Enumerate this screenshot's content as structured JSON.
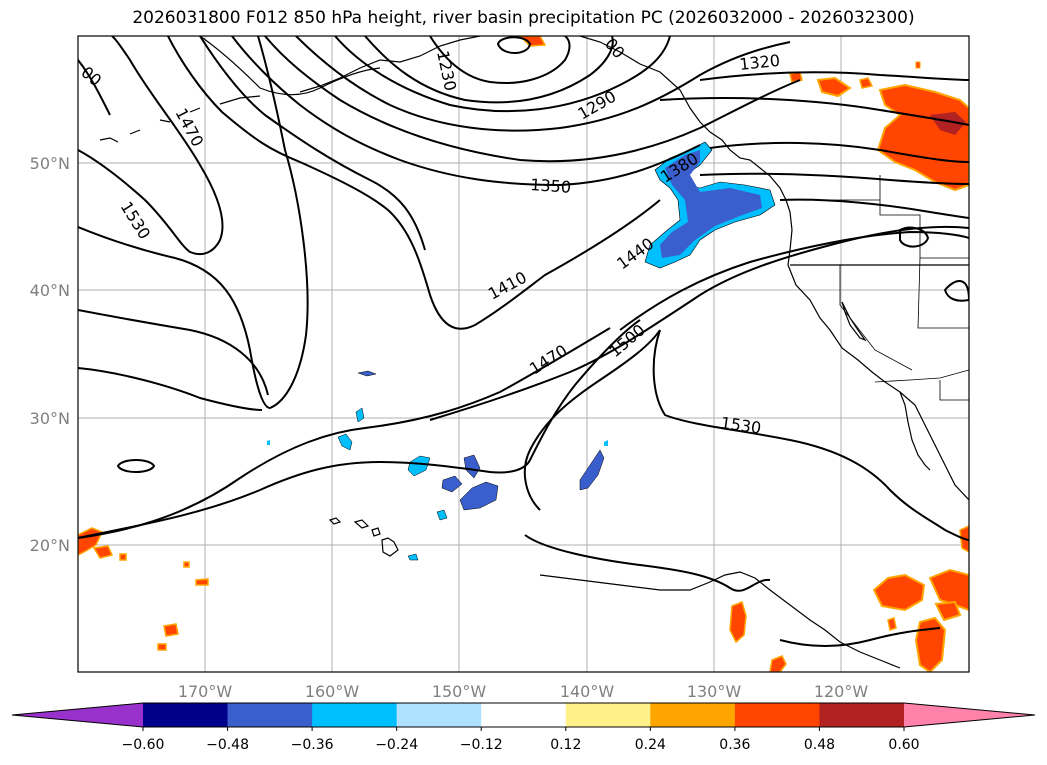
{
  "title": "2026031800 F012 850 hPa height, river basin precipitation PC (2026032000 - 2026032300)",
  "lat_labels": [
    "50°N",
    "40°N",
    "30°N",
    "20°N"
  ],
  "lon_labels": [
    "170°W",
    "160°W",
    "150°W",
    "140°W",
    "130°W",
    "120°W"
  ],
  "contour_labels": [
    "1470",
    "1530",
    "1230",
    "1290",
    "1320",
    "1350",
    "1380",
    "1410",
    "1440",
    "1470",
    "1500",
    "1530",
    "00",
    "00"
  ],
  "colorbar": {
    "ticks": [
      "−0.60",
      "−0.48",
      "−0.36",
      "−0.24",
      "−0.12",
      "0.12",
      "0.24",
      "0.36",
      "0.48",
      "0.60"
    ],
    "colors": [
      "#9932cc",
      "#00008b",
      "#3a5fcd",
      "#00bfff",
      "#b0e2ff",
      "#ffffff",
      "#fff08a",
      "#ffa500",
      "#ff4500",
      "#b22222",
      "#ff82ab"
    ]
  },
  "colors": {
    "negative_core": "#3a5fcd",
    "negative_mid": "#00bfff",
    "negative_light": "#b0e2ff",
    "positive_core": "#ff4500",
    "positive_mid": "#ffa500",
    "positive_light": "#fff08a",
    "positive_max": "#b22222"
  }
}
